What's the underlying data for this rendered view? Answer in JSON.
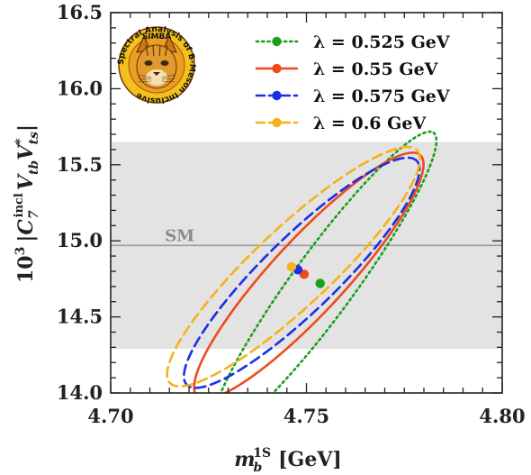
{
  "chart_data": {
    "type": "scatter",
    "xlabel_main": "m",
    "xlabel_sub": "b",
    "xlabel_sup": "1S",
    "xlabel_unit": "[GeV]",
    "ylabel_prefix": "10",
    "ylabel_prefix_exp": "3",
    "ylabel_core": "|C",
    "ylabel_core_sub": "7",
    "ylabel_core_sup": "incl",
    "ylabel_suffix": "V",
    "ylabel_suffix_sub": "tb",
    "ylabel_suffix2": "V",
    "ylabel_suffix2_sub": "ts",
    "ylabel_suffix2_sup": "*",
    "ylabel_close": "|",
    "xlim": [
      4.7,
      4.8
    ],
    "ylim": [
      14.0,
      16.5
    ],
    "x_ticks": [
      {
        "value": 4.7,
        "label": "4.70"
      },
      {
        "value": 4.75,
        "label": "4.75"
      },
      {
        "value": 4.8,
        "label": "4.80"
      }
    ],
    "y_ticks": [
      {
        "value": 14.0,
        "label": "14.0"
      },
      {
        "value": 14.5,
        "label": "14.5"
      },
      {
        "value": 15.0,
        "label": "15.0"
      },
      {
        "value": 15.5,
        "label": "15.5"
      },
      {
        "value": 16.0,
        "label": "16.0"
      },
      {
        "value": 16.5,
        "label": "16.5"
      }
    ],
    "sm_band": {
      "y_low": 14.29,
      "y_high": 15.65,
      "central": 14.97,
      "label": "SM",
      "label_x": 4.712
    },
    "legend_position": "top-right",
    "grid": false,
    "series": [
      {
        "name": "λ = 0.525 GeV",
        "color": "#1aa01a",
        "dash": "dotted",
        "point": {
          "x": 4.7535,
          "y": 14.72
        },
        "ellipse": {
          "cx": 4.7545,
          "cy": 14.725,
          "half_x": 0.0287,
          "angle_deg": -53.8,
          "a": 161,
          "b": 27
        }
      },
      {
        "name": "λ = 0.55 GeV",
        "color": "#ee4a1a",
        "dash": "solid",
        "point": {
          "x": 4.7494,
          "y": 14.78
        },
        "ellipse": {
          "cx": 4.7506,
          "cy": 14.77,
          "half_x": 0.0293,
          "angle_deg": -47.2,
          "a": 157,
          "b": 35
        }
      },
      {
        "name": "λ = 0.575 GeV",
        "color": "#1a2ee6",
        "dash": "dashed",
        "point": {
          "x": 4.7478,
          "y": 14.81
        },
        "ellipse": {
          "cx": 4.7488,
          "cy": 14.79,
          "half_x": 0.0301,
          "angle_deg": -44.2,
          "a": 165,
          "b": 38
        }
      },
      {
        "name": "λ = 0.6 GeV",
        "color": "#f5b21a",
        "dash": "dashed",
        "point": {
          "x": 4.7462,
          "y": 14.83
        },
        "ellipse": {
          "cx": 4.7467,
          "cy": 14.83,
          "half_x": 0.0323,
          "angle_deg": -43.2,
          "a": 175,
          "b": 40
        }
      }
    ]
  },
  "logo": {
    "text_top": "SIMBA",
    "text_arc": "Spectral Analysis of B-Meson Inclusive",
    "icon": "lynx-head-icon"
  }
}
